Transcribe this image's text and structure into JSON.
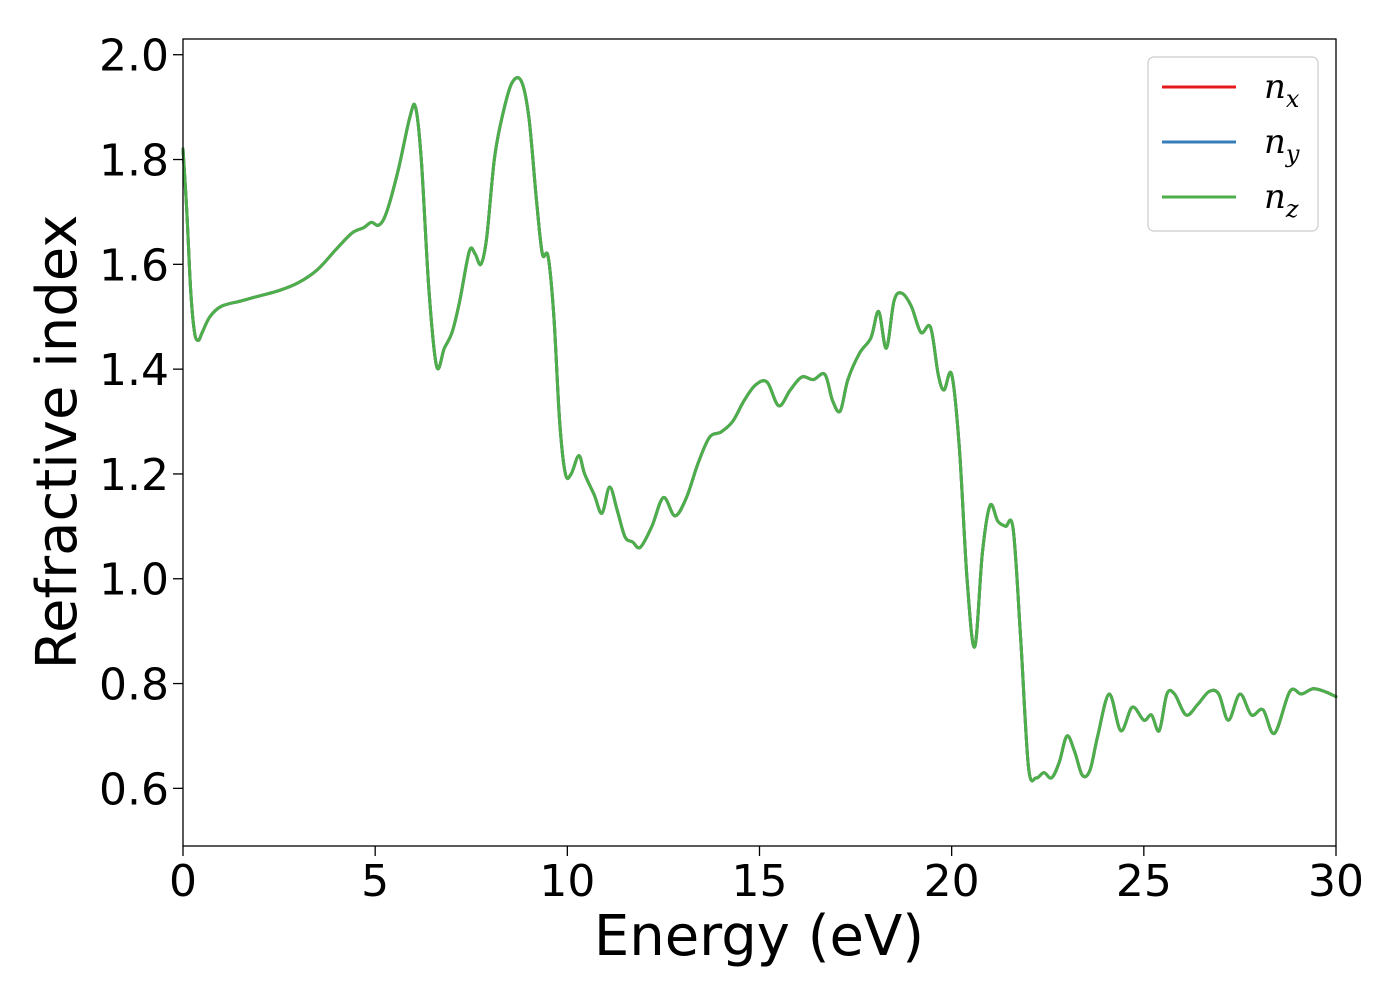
{
  "chart_data": {
    "type": "line",
    "xlabel": "Energy (eV)",
    "ylabel": "Refractive index",
    "xlim": [
      0,
      30
    ],
    "ylim": [
      0.49,
      2.03
    ],
    "xticks": [
      0,
      5,
      10,
      15,
      20,
      25,
      30
    ],
    "xtick_labels": [
      "0",
      "5",
      "10",
      "15",
      "20",
      "25",
      "30"
    ],
    "yticks": [
      0.6,
      0.8,
      1.0,
      1.2,
      1.4,
      1.6,
      1.8,
      2.0
    ],
    "ytick_labels": [
      "0.6",
      "0.8",
      "1.0",
      "1.2",
      "1.4",
      "1.6",
      "1.8",
      "2.0"
    ],
    "grid": false,
    "legend_position": "top-right",
    "series": [
      {
        "name": "n_x",
        "label_main": "n",
        "label_sub": "x",
        "color": "#e41a1c",
        "x": [
          0,
          0.1,
          0.2,
          0.3,
          0.4,
          0.5,
          0.7,
          1.0,
          1.5,
          2.0,
          2.5,
          3.0,
          3.5,
          4.0,
          4.4,
          4.7,
          4.9,
          5.1,
          5.3,
          5.6,
          5.9,
          6.05,
          6.2,
          6.4,
          6.6,
          6.8,
          7.0,
          7.2,
          7.45,
          7.6,
          7.75,
          7.9,
          8.1,
          8.3,
          8.55,
          8.8,
          9.0,
          9.2,
          9.35,
          9.5,
          9.65,
          9.8,
          9.95,
          10.1,
          10.3,
          10.45,
          10.7,
          10.9,
          11.1,
          11.3,
          11.5,
          11.7,
          11.9,
          12.2,
          12.5,
          12.8,
          13.1,
          13.4,
          13.7,
          14.0,
          14.3,
          14.6,
          14.9,
          15.2,
          15.5,
          15.8,
          16.1,
          16.4,
          16.7,
          16.9,
          17.1,
          17.3,
          17.6,
          17.9,
          18.1,
          18.3,
          18.5,
          18.7,
          18.95,
          19.2,
          19.45,
          19.65,
          19.8,
          20.0,
          20.2,
          20.4,
          20.6,
          20.8,
          21.0,
          21.2,
          21.4,
          21.6,
          21.8,
          22.0,
          22.2,
          22.4,
          22.6,
          22.8,
          23.0,
          23.2,
          23.4,
          23.6,
          23.8,
          24.1,
          24.4,
          24.7,
          25.0,
          25.2,
          25.4,
          25.6,
          25.8,
          26.1,
          26.4,
          26.7,
          26.95,
          27.2,
          27.5,
          27.8,
          28.1,
          28.4,
          28.8,
          29.1,
          29.4,
          29.7,
          30.0
        ],
        "y": [
          1.82,
          1.7,
          1.55,
          1.47,
          1.455,
          1.47,
          1.5,
          1.52,
          1.53,
          1.54,
          1.55,
          1.565,
          1.59,
          1.63,
          1.66,
          1.67,
          1.68,
          1.675,
          1.7,
          1.78,
          1.88,
          1.9,
          1.8,
          1.55,
          1.405,
          1.44,
          1.47,
          1.53,
          1.625,
          1.62,
          1.6,
          1.65,
          1.8,
          1.88,
          1.945,
          1.95,
          1.88,
          1.72,
          1.62,
          1.615,
          1.5,
          1.3,
          1.2,
          1.2,
          1.235,
          1.2,
          1.16,
          1.125,
          1.175,
          1.13,
          1.08,
          1.07,
          1.06,
          1.1,
          1.155,
          1.12,
          1.155,
          1.22,
          1.27,
          1.28,
          1.3,
          1.34,
          1.37,
          1.375,
          1.33,
          1.36,
          1.385,
          1.38,
          1.39,
          1.34,
          1.32,
          1.38,
          1.43,
          1.46,
          1.51,
          1.44,
          1.53,
          1.545,
          1.52,
          1.47,
          1.48,
          1.39,
          1.36,
          1.39,
          1.25,
          1.0,
          0.87,
          1.05,
          1.14,
          1.11,
          1.1,
          1.095,
          0.88,
          0.64,
          0.62,
          0.63,
          0.62,
          0.65,
          0.7,
          0.67,
          0.625,
          0.635,
          0.7,
          0.78,
          0.71,
          0.755,
          0.73,
          0.74,
          0.71,
          0.78,
          0.78,
          0.74,
          0.76,
          0.785,
          0.78,
          0.73,
          0.78,
          0.74,
          0.75,
          0.705,
          0.785,
          0.78,
          0.79,
          0.785,
          0.775
        ]
      },
      {
        "name": "n_y",
        "label_main": "n",
        "label_sub": "y",
        "color": "#377eb8",
        "same_as": "n_x"
      },
      {
        "name": "n_z",
        "label_main": "n",
        "label_sub": "z",
        "color": "#4daf4a",
        "same_as": "n_x"
      }
    ]
  }
}
